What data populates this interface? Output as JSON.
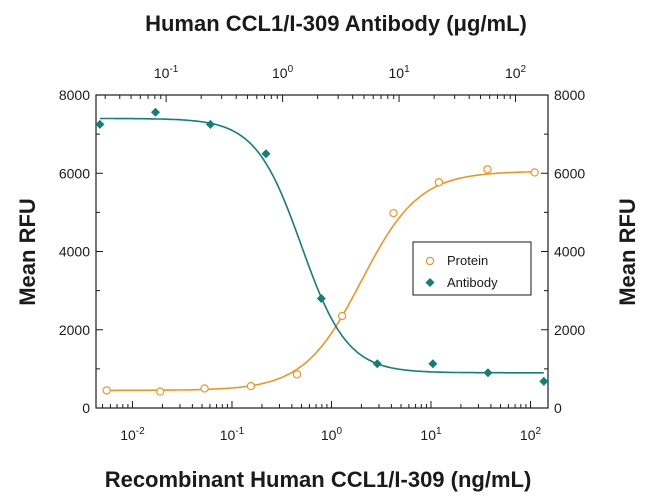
{
  "chart_data": {
    "type": "scatter",
    "top_title": "Human CCL1/I-309 Antibody (μg/mL)",
    "xlabel": "Recombinant Human CCL1/I-309 (ng/mL)",
    "ylabel_left": "Mean RFU",
    "ylabel_right": "Mean RFU",
    "x_scale": "log",
    "x_bottom_range": [
      0.0043,
      150
    ],
    "x_top_range": [
      0.025,
      190
    ],
    "ylim": [
      0,
      8000
    ],
    "y_ticks": [
      0,
      2000,
      4000,
      6000,
      8000
    ],
    "x_bottom_tick_labels": [
      {
        "base": "10",
        "exp": "-2"
      },
      {
        "base": "10",
        "exp": "-1"
      },
      {
        "base": "10",
        "exp": "0"
      },
      {
        "base": "10",
        "exp": "1"
      },
      {
        "base": "10",
        "exp": "2"
      }
    ],
    "x_top_tick_labels": [
      {
        "base": "10",
        "exp": "-1"
      },
      {
        "base": "10",
        "exp": "0"
      },
      {
        "base": "10",
        "exp": "1"
      },
      {
        "base": "10",
        "exp": "2"
      }
    ],
    "legend_position": "right-center",
    "series": [
      {
        "name": "Protein",
        "axis": "bottom (ng/mL)",
        "marker": "open-circle",
        "color": "#e8962e",
        "x": [
          0.0055,
          0.019,
          0.053,
          0.155,
          0.45,
          1.28,
          4.2,
          12,
          37,
          110
        ],
        "y": [
          450,
          420,
          500,
          560,
          860,
          2350,
          4980,
          5770,
          6100,
          6020
        ]
      },
      {
        "name": "Antibody",
        "axis": "top (μg/mL)",
        "marker": "filled-diamond",
        "color": "#167d77",
        "x": [
          0.027,
          0.081,
          0.24,
          0.72,
          2.15,
          6.5,
          19.5,
          58,
          175
        ],
        "y": [
          7250,
          7560,
          7250,
          6500,
          2800,
          1130,
          1130,
          900,
          680
        ]
      }
    ],
    "fits": [
      {
        "series": "Protein",
        "bottom": 450,
        "top": 6050,
        "ec50": 2.0,
        "hill": 1.5
      },
      {
        "series": "Antibody",
        "bottom": 900,
        "top": 7400,
        "ec50": 1.45,
        "hill": 2.2
      }
    ]
  },
  "legend": {
    "protein_label": "Protein",
    "antibody_label": "Antibody"
  }
}
